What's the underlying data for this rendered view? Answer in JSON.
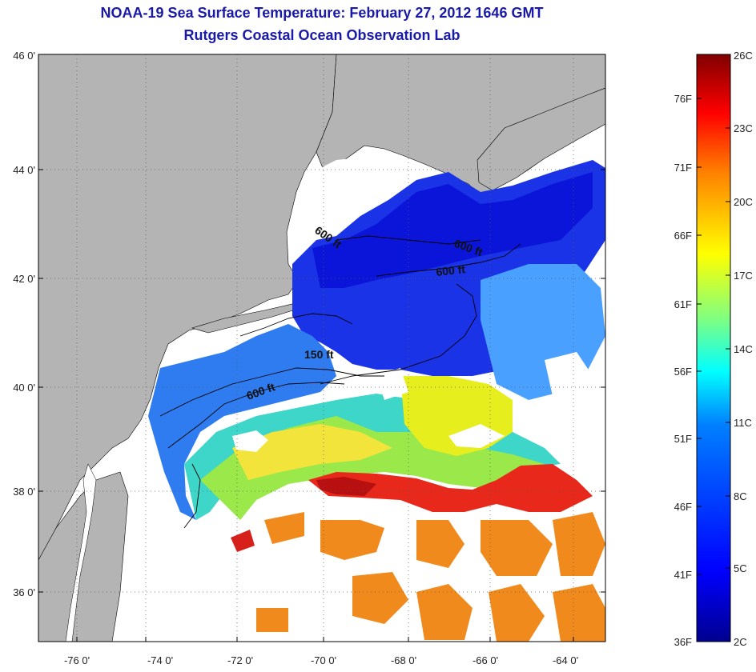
{
  "header": {
    "title": "NOAA-19 Sea Surface Temperature:  February 27, 2012 1646 GMT",
    "subtitle": "Rutgers Coastal Ocean Observation Lab"
  },
  "map": {
    "lat_labels": [
      "46 0'",
      "44 0'",
      "42 0'",
      "40 0'",
      "38 0'",
      "36 0'"
    ],
    "lon_labels": [
      "-76 0'",
      "-74 0'",
      "-72 0'",
      "-70 0'",
      "-68 0'",
      "-66 0'",
      "-64 0'"
    ],
    "contour_labels": [
      "600 ft",
      "600 ft",
      "600 ft",
      "150 ft",
      "600 ft"
    ],
    "colors": {
      "land": "#b4b4b4",
      "no_data": "#ffffff",
      "frame": "#000000",
      "grid": "#5a5a5a"
    }
  },
  "colorbar": {
    "fahrenheit_labels": [
      "76F",
      "71F",
      "66F",
      "61F",
      "56F",
      "51F",
      "46F",
      "41F",
      "36F"
    ],
    "celsius_labels": [
      "26C",
      "23C",
      "20C",
      "17C",
      "14C",
      "11C",
      "8C",
      "5C",
      "2C"
    ],
    "gradient": [
      "#00008f",
      "#0000ff",
      "#0080ff",
      "#00ffff",
      "#80ff80",
      "#ffff00",
      "#ff8000",
      "#ff0000",
      "#800000"
    ]
  }
}
